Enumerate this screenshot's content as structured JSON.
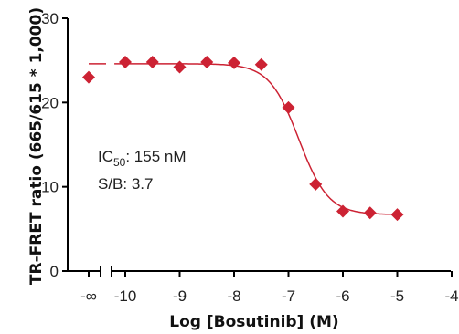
{
  "chart_data": {
    "type": "scatter",
    "xlabel": "Log [Bosutinib] (M)",
    "ylabel": "TR-FRET ratio (665/615 * 1,000)",
    "xlim": [
      -10.5,
      -4
    ],
    "ylim": [
      0,
      30
    ],
    "y_ticks": [
      "0",
      "10",
      "20",
      "30"
    ],
    "x_ticks": [
      {
        "value": -10,
        "label": "-10"
      },
      {
        "value": -9,
        "label": "-9"
      },
      {
        "value": -8,
        "label": "-8"
      },
      {
        "value": -7,
        "label": "-7"
      },
      {
        "value": -6,
        "label": "-6"
      },
      {
        "value": -5,
        "label": "-5"
      },
      {
        "value": -4,
        "label": "-4"
      }
    ],
    "neg_infinity_label": "-∞",
    "neg_infinity_point": 23.0,
    "grid": false,
    "colors": {
      "series": "#cc2233",
      "axis": "#000000"
    },
    "points": [
      {
        "x": -10,
        "y": 24.8
      },
      {
        "x": -9.5,
        "y": 24.8
      },
      {
        "x": -9,
        "y": 24.2
      },
      {
        "x": -8.5,
        "y": 24.8
      },
      {
        "x": -8,
        "y": 24.7
      },
      {
        "x": -7.5,
        "y": 24.5
      },
      {
        "x": -7,
        "y": 19.4
      },
      {
        "x": -6.5,
        "y": 10.3
      },
      {
        "x": -6,
        "y": 7.1
      },
      {
        "x": -5.5,
        "y": 6.9
      },
      {
        "x": -5,
        "y": 6.7
      }
    ],
    "fit": {
      "top": 24.6,
      "bottom": 6.7,
      "log_ic50": -6.81,
      "hill": 1.6
    },
    "annotations": {
      "ic50_label": "IC",
      "ic50_subscript": "50",
      "ic50_value": ": 155 nM",
      "sb": "S/B: 3.7"
    }
  }
}
